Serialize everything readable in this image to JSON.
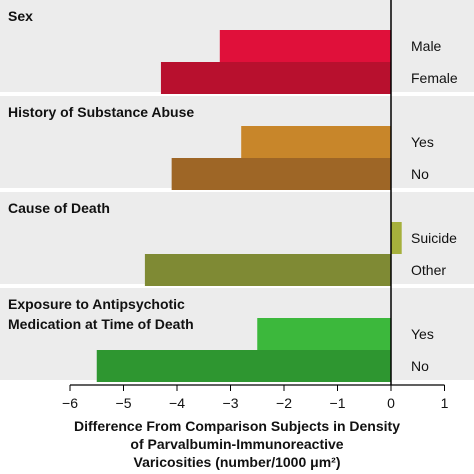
{
  "chart_data": {
    "type": "bar",
    "orientation": "horizontal",
    "xlim": [
      -6,
      1
    ],
    "xticks": [
      -6,
      -5,
      -4,
      -3,
      -2,
      -1,
      0,
      1
    ],
    "xtick_labels": [
      "−6",
      "−5",
      "−4",
      "−3",
      "−2",
      "−1",
      "0",
      "1"
    ],
    "xlabel_lines": [
      "Difference From Comparison Subjects in Density",
      "of Parvalbumin-Immunoreactive",
      "Varicosities (number/1000 μm²)"
    ],
    "panels": [
      {
        "title_lines": [
          "Sex"
        ],
        "bars": [
          {
            "label": "Male",
            "value": -3.2,
            "color": "#e0103a"
          },
          {
            "label": "Female",
            "value": -4.3,
            "color": "#b8102e"
          }
        ]
      },
      {
        "title_lines": [
          "History of Substance Abuse"
        ],
        "bars": [
          {
            "label": "Yes",
            "value": -2.8,
            "color": "#c8862a"
          },
          {
            "label": "No",
            "value": -4.1,
            "color": "#9e6626"
          }
        ]
      },
      {
        "title_lines": [
          "Cause of Death"
        ],
        "bars": [
          {
            "label": "Suicide",
            "value": 0.2,
            "color": "#a6b03c"
          },
          {
            "label": "Other",
            "value": -4.6,
            "color": "#7f8a34"
          }
        ]
      },
      {
        "title_lines": [
          "Exposure to Antipsychotic",
          "Medication at Time of Death"
        ],
        "bars": [
          {
            "label": "Yes",
            "value": -2.5,
            "color": "#3cb83c"
          },
          {
            "label": "No",
            "value": -5.5,
            "color": "#2e9630"
          }
        ]
      }
    ],
    "panel_background": "#ececec",
    "grid": false,
    "legend": "none"
  }
}
